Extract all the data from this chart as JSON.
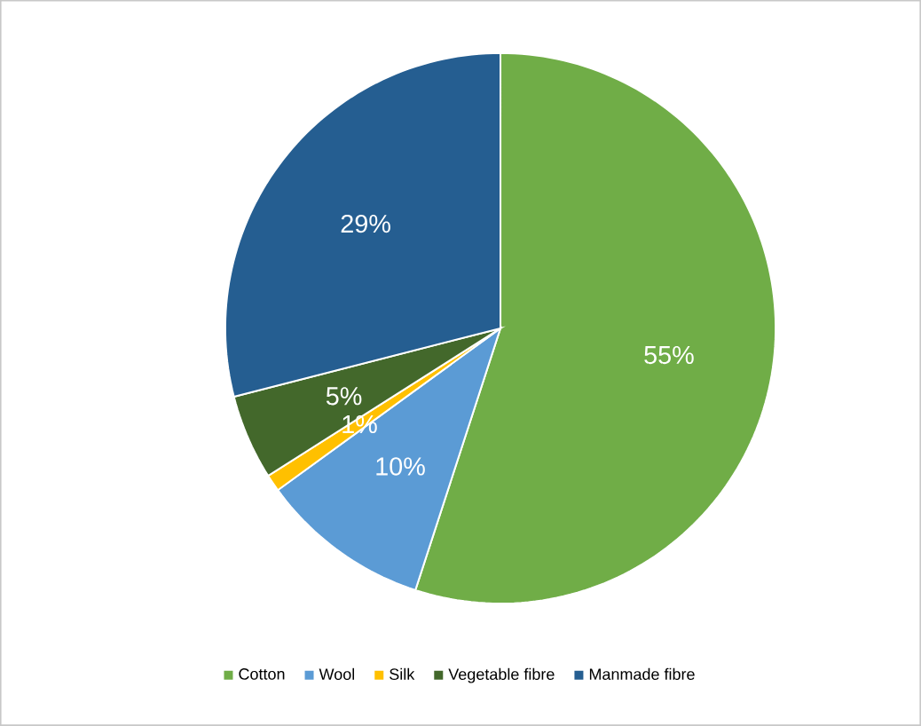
{
  "chart_data": {
    "type": "pie",
    "categories": [
      "Cotton",
      "Wool",
      "Silk",
      "Vegetable fibre",
      "Manmade fibre"
    ],
    "values": [
      55,
      10,
      1,
      5,
      29
    ],
    "colors": [
      "#70ad47",
      "#5b9bd5",
      "#ffc000",
      "#43682b",
      "#255e91"
    ],
    "value_labels": [
      "55%",
      "10%",
      "1%",
      "5%",
      "29%"
    ],
    "legend": "bottom"
  }
}
